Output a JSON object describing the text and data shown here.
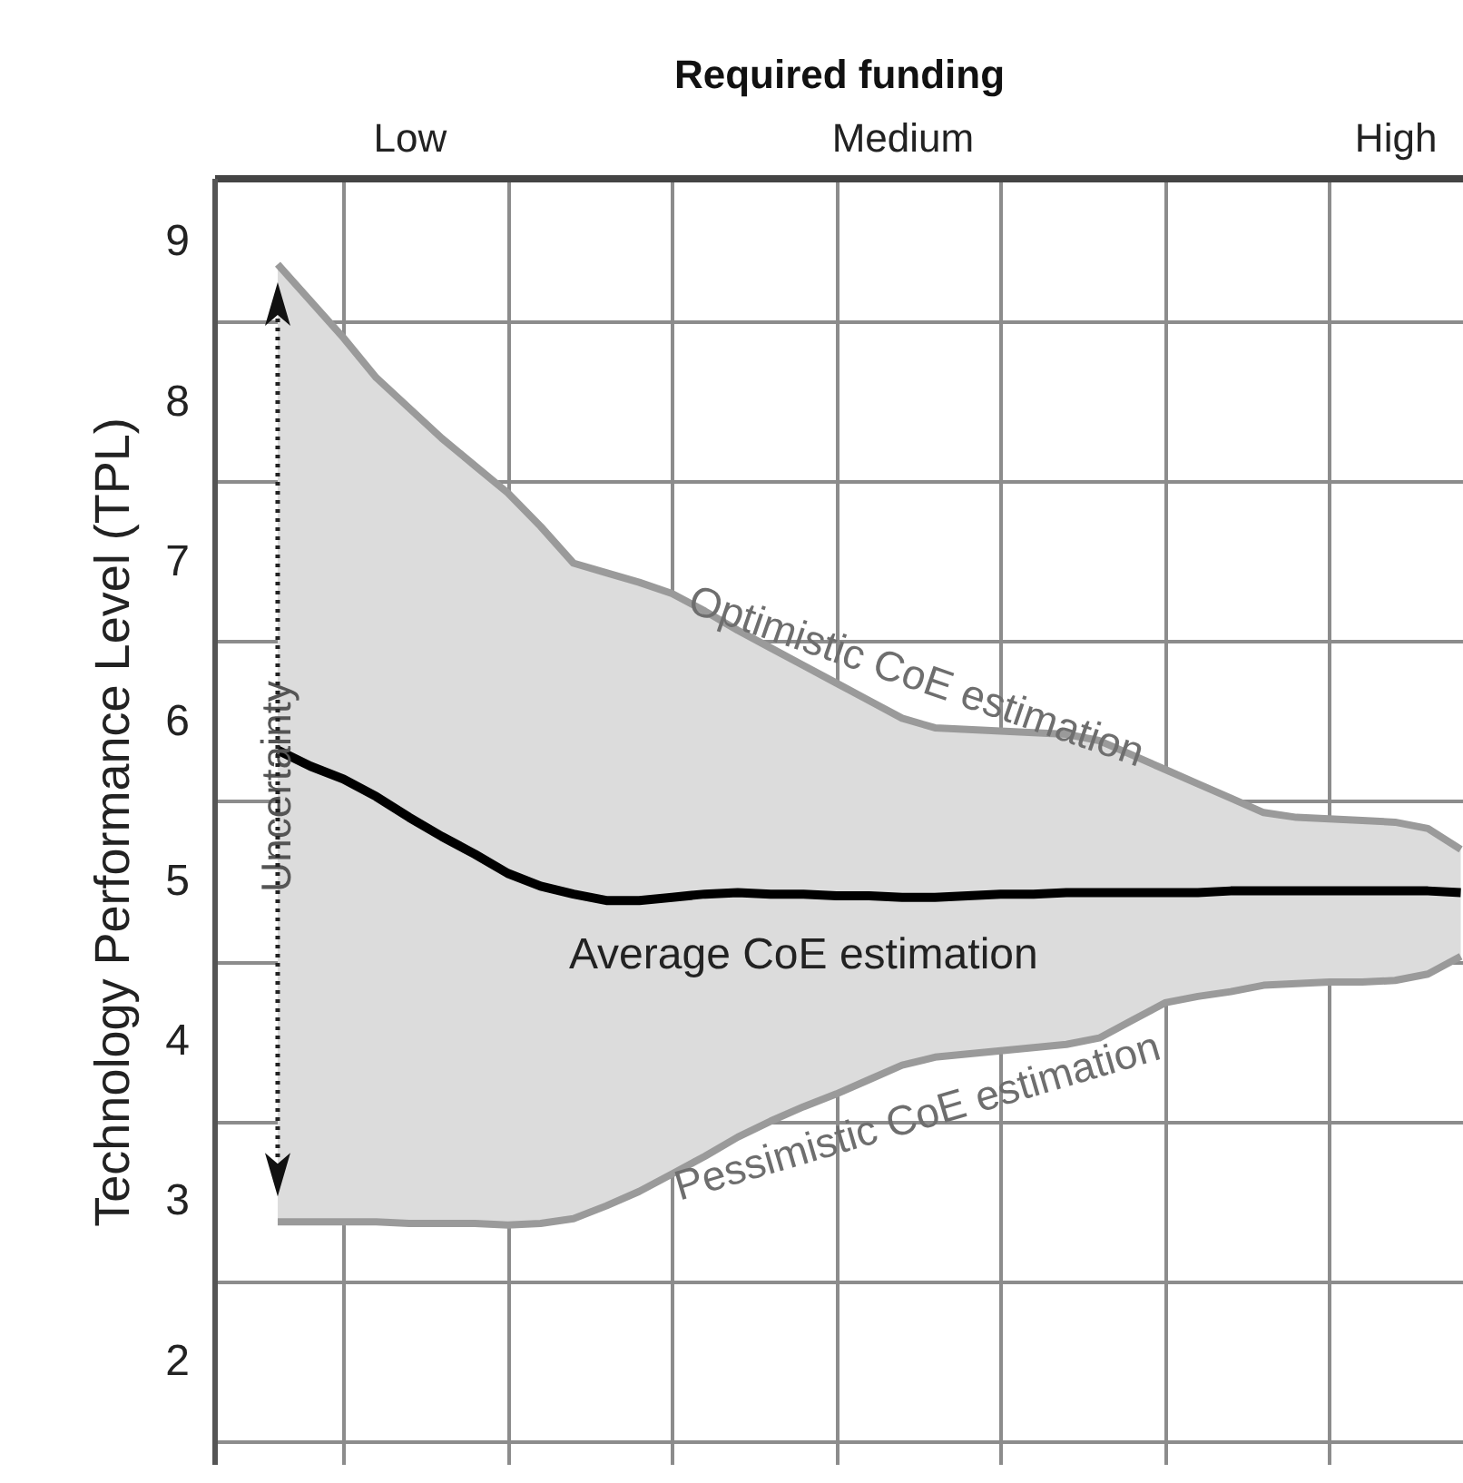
{
  "chart_data": {
    "type": "line",
    "xlabel": "Required funding",
    "ylabel": "Technology Performance Level (TPL)",
    "categories": [
      null,
      null,
      null,
      null,
      "Low",
      null,
      null,
      null,
      null,
      null,
      null,
      null,
      null,
      null,
      null,
      null,
      null,
      null,
      null,
      "Medium",
      null,
      null,
      null,
      null,
      null,
      null,
      null,
      null,
      null,
      null,
      null,
      null,
      null,
      null,
      "High",
      null,
      null
    ],
    "ylim": [
      1.35,
      9.4
    ],
    "yticks": [
      2,
      3,
      4,
      5,
      6,
      7,
      8,
      9,
      {
        "value": 1.5,
        "label": null
      },
      {
        "value": 2.5,
        "label": null
      },
      {
        "value": 3.5,
        "label": null
      },
      {
        "value": 4.5,
        "label": null
      },
      {
        "value": 5.5,
        "label": null
      },
      {
        "value": 6.5,
        "label": null
      },
      {
        "value": 7.5,
        "label": null
      },
      {
        "value": 8.5,
        "label": null
      }
    ],
    "grid": true,
    "series": [
      {
        "name": "Optimistic CoE estimation",
        "color": "#9a9a9a",
        "values": [
          8.86,
          8.63,
          8.4,
          8.15,
          7.96,
          7.77,
          7.6,
          7.43,
          7.22,
          6.99,
          6.93,
          6.87,
          6.8,
          6.69,
          6.57,
          6.46,
          6.35,
          6.24,
          6.13,
          6.02,
          5.96,
          5.95,
          5.94,
          5.93,
          5.92,
          5.88,
          5.79,
          5.7,
          5.61,
          5.52,
          5.43,
          5.4,
          5.39,
          5.38,
          5.37,
          5.33,
          5.2
        ]
      },
      {
        "name": "Average CoE estimation",
        "color": "#000000",
        "values": [
          5.82,
          5.72,
          5.64,
          5.53,
          5.4,
          5.28,
          5.17,
          5.05,
          4.97,
          4.92,
          4.88,
          4.88,
          4.9,
          4.92,
          4.93,
          4.92,
          4.92,
          4.91,
          4.91,
          4.9,
          4.9,
          4.91,
          4.92,
          4.92,
          4.93,
          4.93,
          4.93,
          4.93,
          4.93,
          4.94,
          4.94,
          4.94,
          4.94,
          4.94,
          4.94,
          4.94,
          4.93
        ],
        "lower": [
          2.87,
          2.87,
          2.87,
          2.87,
          2.86,
          2.86,
          2.86,
          2.85,
          2.86,
          2.89,
          2.97,
          3.06,
          3.17,
          3.28,
          3.4,
          3.5,
          3.59,
          3.67,
          3.76,
          3.85,
          3.9,
          3.92,
          3.94,
          3.96,
          3.98,
          4.02,
          4.13,
          4.24,
          4.28,
          4.31,
          4.35,
          4.36,
          4.37,
          4.37,
          4.38,
          4.42,
          4.53
        ],
        "upper": [
          8.86,
          8.63,
          8.4,
          8.15,
          7.96,
          7.77,
          7.6,
          7.43,
          7.22,
          6.99,
          6.93,
          6.87,
          6.8,
          6.69,
          6.57,
          6.46,
          6.35,
          6.24,
          6.13,
          6.02,
          5.96,
          5.95,
          5.94,
          5.93,
          5.92,
          5.88,
          5.79,
          5.7,
          5.61,
          5.52,
          5.43,
          5.4,
          5.39,
          5.38,
          5.37,
          5.33,
          5.2
        ]
      },
      {
        "name": "Pessimistic CoE estimation",
        "color": "#9a9a9a",
        "values": [
          2.87,
          2.87,
          2.87,
          2.87,
          2.86,
          2.86,
          2.86,
          2.85,
          2.86,
          2.89,
          2.97,
          3.06,
          3.17,
          3.28,
          3.4,
          3.5,
          3.59,
          3.67,
          3.76,
          3.85,
          3.9,
          3.92,
          3.94,
          3.96,
          3.98,
          4.02,
          4.13,
          4.24,
          4.28,
          4.31,
          4.35,
          4.36,
          4.37,
          4.37,
          4.38,
          4.42,
          4.53
        ]
      }
    ],
    "annotations": [
      "Uncertainty"
    ]
  }
}
